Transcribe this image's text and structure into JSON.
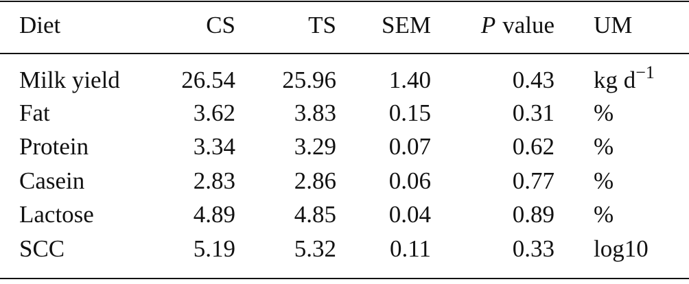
{
  "table": {
    "header": [
      "Diet",
      "CS",
      "TS",
      "SEM",
      {
        "italic": "P",
        "text": "value"
      },
      "UM"
    ],
    "rows": [
      [
        "Milk yield",
        "26.54",
        "25.96",
        "1.40",
        "0.43",
        {
          "text": "kg d",
          "sup": "−1"
        }
      ],
      [
        "Fat",
        "3.62",
        "3.83",
        "0.15",
        "0.31",
        "%"
      ],
      [
        "Protein",
        "3.34",
        "3.29",
        "0.07",
        "0.62",
        "%"
      ],
      [
        "Casein",
        "2.83",
        "2.86",
        "0.06",
        "0.77",
        "%"
      ],
      [
        "Lactose",
        "4.89",
        "4.85",
        "0.04",
        "0.89",
        "%"
      ],
      [
        "SCC",
        "5.19",
        "5.32",
        "0.11",
        "0.33",
        "log10"
      ]
    ]
  }
}
